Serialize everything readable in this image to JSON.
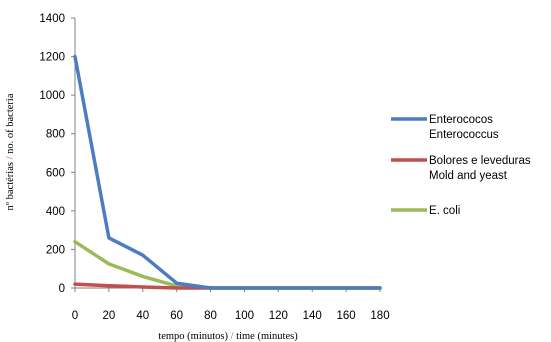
{
  "chart_data": {
    "type": "line",
    "title": "",
    "xlabel": {
      "part1": "tempo (minutos) ",
      "sep": "/",
      "part2": " time (minutes)"
    },
    "ylabel": {
      "part1": "nº bactérias ",
      "sep": "/",
      "part2": " no. of bacteria"
    },
    "x": [
      0,
      20,
      40,
      60,
      80,
      100,
      120,
      140,
      160,
      180
    ],
    "xlim": [
      0,
      180
    ],
    "ylim": [
      0,
      1400
    ],
    "xticks": [
      "0",
      "20",
      "40",
      "60",
      "80",
      "100",
      "120",
      "140",
      "160",
      "180"
    ],
    "yticks": [
      "0",
      "200",
      "400",
      "600",
      "800",
      "1000",
      "1200",
      "1400"
    ],
    "grid": false,
    "legend_position": "right",
    "series": [
      {
        "name": "Enterococos",
        "name2": "Enterococcus",
        "color": "#4a7dc2",
        "values": [
          1200,
          260,
          170,
          25,
          0,
          0,
          0,
          0,
          0,
          0
        ]
      },
      {
        "name": "Bolores e leveduras",
        "name2": "Mold and yeast",
        "color": "#c0504d",
        "values": [
          20,
          12,
          5,
          0,
          0,
          0,
          0,
          0,
          0,
          0
        ]
      },
      {
        "name": "E. coli",
        "name2": "",
        "color": "#9bbb59",
        "values": [
          240,
          125,
          60,
          10,
          0,
          0,
          0,
          0,
          0,
          0
        ]
      }
    ]
  }
}
